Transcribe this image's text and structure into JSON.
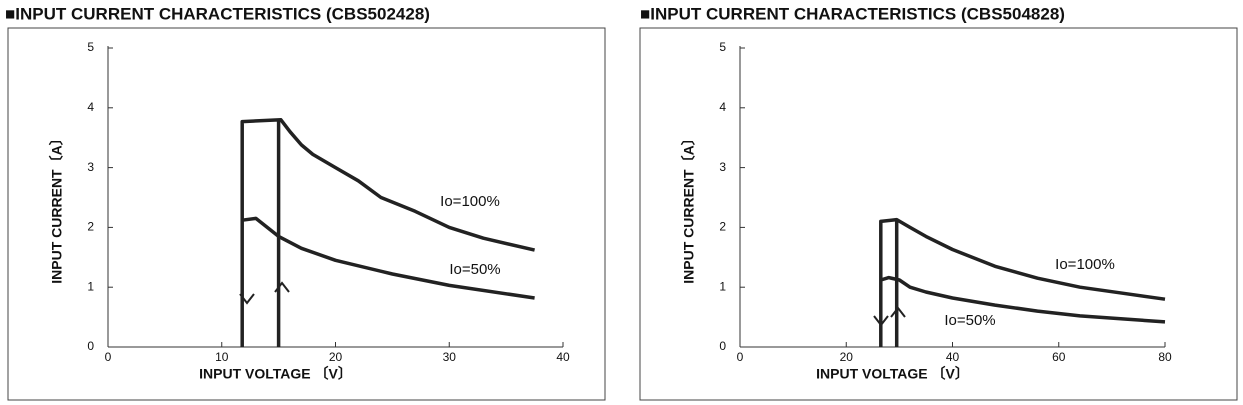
{
  "chart_data": [
    {
      "type": "line",
      "title": "■INPUT CURRENT CHARACTERISTICS (CBS502428)",
      "xlabel": "INPUT VOLTAGE 〔V〕",
      "ylabel": "INPUT CURRENT〔A〕",
      "xlim": [
        0,
        40
      ],
      "xticks": [
        0,
        10,
        20,
        30,
        40
      ],
      "ylim": [
        0,
        5
      ],
      "yticks": [
        0,
        1,
        2,
        3,
        4,
        5
      ],
      "series": [
        {
          "name": "Io=100%",
          "color": "#222222",
          "x": [
            11.8,
            11.8,
            15.2,
            16,
            17,
            18,
            20,
            22,
            24,
            27,
            30,
            33,
            37.5,
            15,
            15,
            15
          ],
          "values": [
            0,
            3.77,
            3.8,
            3.6,
            3.38,
            3.22,
            3.0,
            2.78,
            2.5,
            2.27,
            2.0,
            1.82,
            1.62,
            null,
            3.8,
            0
          ]
        },
        {
          "name": "Io=50%",
          "color": "#222222",
          "x": [
            11.8,
            13,
            15,
            17,
            20,
            25,
            30,
            37.5
          ],
          "values": [
            2.12,
            2.15,
            1.85,
            1.65,
            1.45,
            1.22,
            1.03,
            0.82
          ]
        }
      ]
    },
    {
      "type": "line",
      "title": "■INPUT CURRENT CHARACTERISTICS (CBS504828)",
      "xlabel": "INPUT VOLTAGE 〔V〕",
      "ylabel": "INPUT CURRENT〔A〕",
      "xlim": [
        0,
        80
      ],
      "xticks": [
        0,
        20,
        40,
        60,
        80
      ],
      "ylim": [
        0,
        5
      ],
      "yticks": [
        0,
        1,
        2,
        3,
        4,
        5
      ],
      "series": [
        {
          "name": "Io=100%",
          "color": "#222222",
          "x": [
            26.5,
            26.5,
            29.5,
            32,
            35,
            40,
            48,
            56,
            64,
            72,
            80,
            29.5,
            29.5,
            29.5
          ],
          "values": [
            0,
            2.1,
            2.13,
            2.0,
            1.85,
            1.63,
            1.35,
            1.15,
            1.0,
            0.9,
            0.8,
            null,
            2.13,
            0
          ]
        },
        {
          "name": "Io=50%",
          "color": "#222222",
          "x": [
            26.5,
            28,
            30,
            32,
            35,
            40,
            48,
            56,
            64,
            72,
            80
          ],
          "values": [
            1.12,
            1.16,
            1.12,
            1.0,
            0.92,
            0.82,
            0.7,
            0.6,
            0.52,
            0.47,
            0.42
          ]
        }
      ]
    }
  ]
}
